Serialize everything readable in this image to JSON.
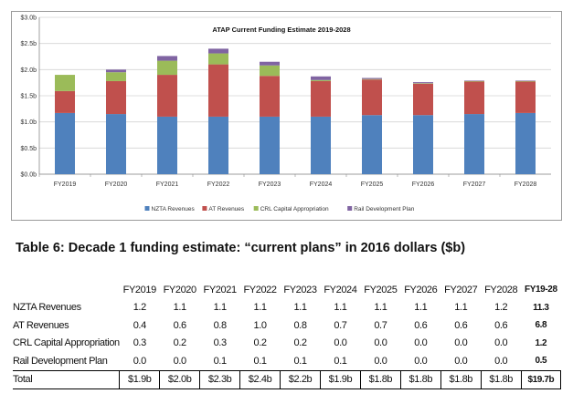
{
  "chart_data": {
    "type": "bar",
    "stacked": true,
    "title": "ATAP Current Funding Estimate 2019-2028",
    "categories": [
      "FY2019",
      "FY2020",
      "FY2021",
      "FY2022",
      "FY2023",
      "FY2024",
      "FY2025",
      "FY2026",
      "FY2027",
      "FY2028"
    ],
    "y_ticks": [
      "$0.0b",
      "$0.5b",
      "$1.0b",
      "$1.5b",
      "$2.0b",
      "$2.5b",
      "$3.0b"
    ],
    "ylim": [
      0,
      3.0
    ],
    "legend_position": "bottom",
    "series": [
      {
        "name": "NZTA Revenues",
        "color": "#4F81BD",
        "values": [
          1.17,
          1.15,
          1.1,
          1.1,
          1.1,
          1.1,
          1.13,
          1.13,
          1.15,
          1.17
        ]
      },
      {
        "name": "AT Revenues",
        "color": "#C0504D",
        "values": [
          0.42,
          0.63,
          0.8,
          1.0,
          0.78,
          0.68,
          0.68,
          0.6,
          0.62,
          0.6
        ]
      },
      {
        "name": "CRL Capital Appropriation",
        "color": "#9BBB59",
        "values": [
          0.31,
          0.17,
          0.27,
          0.21,
          0.2,
          0.02,
          0.01,
          0.01,
          0.01,
          0.01
        ]
      },
      {
        "name": "Rail Development Plan",
        "color": "#8064A2",
        "values": [
          0.0,
          0.05,
          0.09,
          0.09,
          0.07,
          0.07,
          0.02,
          0.02,
          0.01,
          0.01
        ]
      }
    ]
  },
  "table": {
    "heading": "Table 6: Decade 1 funding estimate: “current plans” in 2016 dollars ($b)",
    "columns": [
      "FY2019",
      "FY2020",
      "FY2021",
      "FY2022",
      "FY2023",
      "FY2024",
      "FY2025",
      "FY2026",
      "FY2027",
      "FY2028",
      "FY19-28"
    ],
    "rows": [
      {
        "label": "NZTA Revenues",
        "cells": [
          "1.2",
          "1.1",
          "1.1",
          "1.1",
          "1.1",
          "1.1",
          "1.1",
          "1.1",
          "1.1",
          "1.2",
          "11.3"
        ]
      },
      {
        "label": "AT Revenues",
        "cells": [
          "0.4",
          "0.6",
          "0.8",
          "1.0",
          "0.8",
          "0.7",
          "0.7",
          "0.6",
          "0.6",
          "0.6",
          "6.8"
        ]
      },
      {
        "label": "CRL Capital Appropriation",
        "cells": [
          "0.3",
          "0.2",
          "0.3",
          "0.2",
          "0.2",
          "0.0",
          "0.0",
          "0.0",
          "0.0",
          "0.0",
          "1.2"
        ]
      },
      {
        "label": "Rail Development Plan",
        "cells": [
          "0.0",
          "0.0",
          "0.1",
          "0.1",
          "0.1",
          "0.1",
          "0.0",
          "0.0",
          "0.0",
          "0.0",
          "0.5"
        ]
      },
      {
        "label": "Total",
        "cells": [
          "$1.9b",
          "$2.0b",
          "$2.3b",
          "$2.4b",
          "$2.2b",
          "$1.9b",
          "$1.8b",
          "$1.8b",
          "$1.8b",
          "$1.8b",
          "$19.7b"
        ]
      }
    ]
  }
}
